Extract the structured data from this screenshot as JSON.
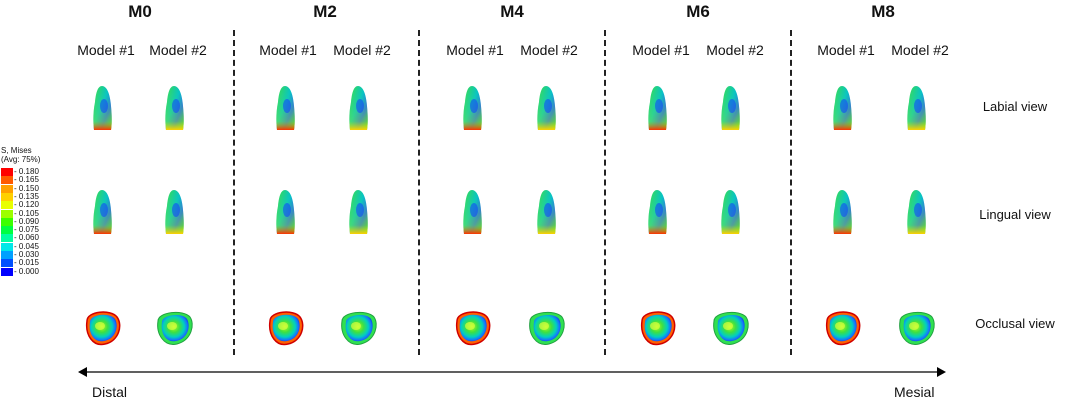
{
  "groups": [
    "M0",
    "M2",
    "M4",
    "M6",
    "M8"
  ],
  "model_labels": [
    "Model #1",
    "Model #2"
  ],
  "views": [
    "Labial view",
    "Lingual view",
    "Occlusal view"
  ],
  "legend": {
    "title_line1": "S, Mises",
    "title_line2": "(Avg: 75%)",
    "values": [
      "0.180",
      "0.165",
      "0.150",
      "0.135",
      "0.120",
      "0.105",
      "0.090",
      "0.075",
      "0.060",
      "0.045",
      "0.030",
      "0.015",
      "0.000"
    ],
    "colors": [
      "#ff0000",
      "#ff5a00",
      "#ffa000",
      "#ffd000",
      "#e8ff00",
      "#9cff00",
      "#3cff00",
      "#00ff40",
      "#00ffa0",
      "#00e8e8",
      "#00a0ff",
      "#0050ff",
      "#0000ff"
    ]
  },
  "axis": {
    "left": "Distal",
    "right": "Mesial"
  }
}
